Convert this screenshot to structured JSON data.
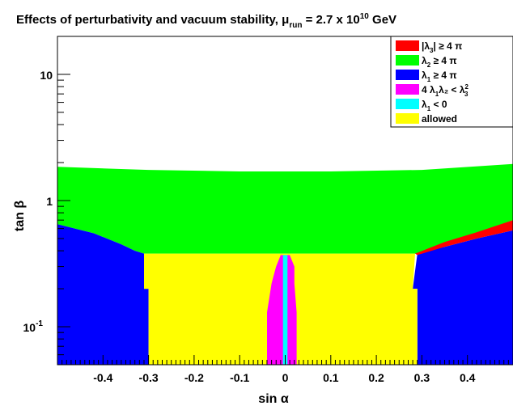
{
  "chart_data": {
    "type": "heatmap",
    "title": "Effects of perturbativity and vacuum stability, μ",
    "title_sub": "run",
    "title_tail_a": " = 2.7 x 10",
    "title_sup": "10",
    "title_tail_b": " GeV",
    "xlabel": "sin α",
    "ylabel": "tan β",
    "xlim": [
      -0.5,
      0.5
    ],
    "ylim": [
      0.05,
      20
    ],
    "y_scale": "log",
    "x_ticks": [
      {
        "value": -0.4,
        "label": "-0.4"
      },
      {
        "value": -0.3,
        "label": "-0.3"
      },
      {
        "value": -0.2,
        "label": "-0.2"
      },
      {
        "value": -0.1,
        "label": "-0.1"
      },
      {
        "value": 0.0,
        "label": "0"
      },
      {
        "value": 0.1,
        "label": "0.1"
      },
      {
        "value": 0.2,
        "label": "0.2"
      },
      {
        "value": 0.3,
        "label": "0.3"
      },
      {
        "value": 0.4,
        "label": "0.4"
      }
    ],
    "y_ticks": [
      {
        "value": 0.1,
        "label": "10",
        "sup": "-1"
      },
      {
        "value": 1,
        "label": "1",
        "sup": ""
      },
      {
        "value": 10,
        "label": "10",
        "sup": ""
      }
    ],
    "legend": [
      {
        "name": "lambda3-abs-ge-4pi",
        "color": "#ff0000",
        "text": "|λ",
        "sub": "3",
        "tail": "| ≥ 4 π",
        "sup": ""
      },
      {
        "name": "lambda2-ge-4pi",
        "color": "#00ff00",
        "text": "λ",
        "sub": "2",
        "tail": " ≥ 4 π",
        "sup": ""
      },
      {
        "name": "lambda1-ge-4pi",
        "color": "#0000ff",
        "text": "λ",
        "sub": "1",
        "tail": " ≥ 4 π",
        "sup": ""
      },
      {
        "name": "vacuum-condition",
        "color": "#ff00ff",
        "text": " 4 λ",
        "sub": "1",
        "tail": "λ₂ < λ",
        "sup": "2",
        "sub2": "3"
      },
      {
        "name": "lambda1-lt-0",
        "color": "#00ffff",
        "text": "λ",
        "sub": "1",
        "tail": " < 0",
        "sup": ""
      },
      {
        "name": "allowed",
        "color": "#ffff00",
        "text": "allowed",
        "sub": "",
        "tail": "",
        "sup": ""
      }
    ],
    "regions": [
      {
        "name": "lambda2-ge-4pi",
        "color": "#00ff00",
        "boundary": [
          [
            -0.5,
            1.85
          ],
          [
            -0.3,
            1.75
          ],
          [
            -0.1,
            1.7
          ],
          [
            0.1,
            1.7
          ],
          [
            0.3,
            1.75
          ],
          [
            0.5,
            1.95
          ],
          [
            0.5,
            0.7
          ],
          [
            0.42,
            0.55
          ],
          [
            0.35,
            0.45
          ],
          [
            0.29,
            0.38
          ],
          [
            0.0,
            0.38
          ],
          [
            -0.31,
            0.38
          ],
          [
            -0.33,
            0.4
          ],
          [
            -0.36,
            0.45
          ],
          [
            -0.42,
            0.55
          ],
          [
            -0.5,
            0.65
          ]
        ]
      },
      {
        "name": "lambda1-ge-4pi-left",
        "color": "#0000ff",
        "boundary": [
          [
            -0.5,
            0.65
          ],
          [
            -0.42,
            0.55
          ],
          [
            -0.36,
            0.45
          ],
          [
            -0.33,
            0.4
          ],
          [
            -0.31,
            0.38
          ],
          [
            -0.31,
            0.2
          ],
          [
            -0.3,
            0.2
          ],
          [
            -0.3,
            0.05
          ],
          [
            -0.5,
            0.05
          ]
        ]
      },
      {
        "name": "lambda1-ge-4pi-right",
        "color": "#0000ff",
        "boundary": [
          [
            0.29,
            0.38
          ],
          [
            0.35,
            0.43
          ],
          [
            0.42,
            0.5
          ],
          [
            0.5,
            0.58
          ],
          [
            0.5,
            0.05
          ],
          [
            0.29,
            0.05
          ],
          [
            0.29,
            0.2
          ],
          [
            0.28,
            0.2
          ]
        ]
      },
      {
        "name": "lambda3-abs-ge-4pi",
        "color": "#ff0000",
        "boundary": [
          [
            0.285,
            0.38
          ],
          [
            0.35,
            0.47
          ],
          [
            0.42,
            0.56
          ],
          [
            0.5,
            0.7
          ],
          [
            0.5,
            0.58
          ],
          [
            0.42,
            0.5
          ],
          [
            0.35,
            0.43
          ],
          [
            0.29,
            0.37
          ]
        ]
      },
      {
        "name": "allowed",
        "color": "#ffff00",
        "boundary": [
          [
            -0.31,
            0.38
          ],
          [
            0.285,
            0.38
          ],
          [
            0.28,
            0.2
          ],
          [
            0.29,
            0.2
          ],
          [
            0.29,
            0.05
          ],
          [
            -0.3,
            0.05
          ],
          [
            -0.3,
            0.2
          ],
          [
            -0.31,
            0.2
          ]
        ]
      },
      {
        "name": "vacuum-condition",
        "color": "#ff00ff",
        "boundary": [
          [
            -0.04,
            0.13
          ],
          [
            -0.03,
            0.22
          ],
          [
            -0.02,
            0.3
          ],
          [
            -0.01,
            0.37
          ],
          [
            0.01,
            0.37
          ],
          [
            0.02,
            0.3
          ],
          [
            0.02,
            0.22
          ],
          [
            0.025,
            0.13
          ],
          [
            0.025,
            0.05
          ],
          [
            -0.04,
            0.05
          ]
        ]
      },
      {
        "name": "lambda1-lt-0",
        "color": "#00ffff",
        "boundary": [
          [
            -0.005,
            0.37
          ],
          [
            0.005,
            0.37
          ],
          [
            0.005,
            0.05
          ],
          [
            -0.005,
            0.05
          ]
        ]
      }
    ]
  }
}
